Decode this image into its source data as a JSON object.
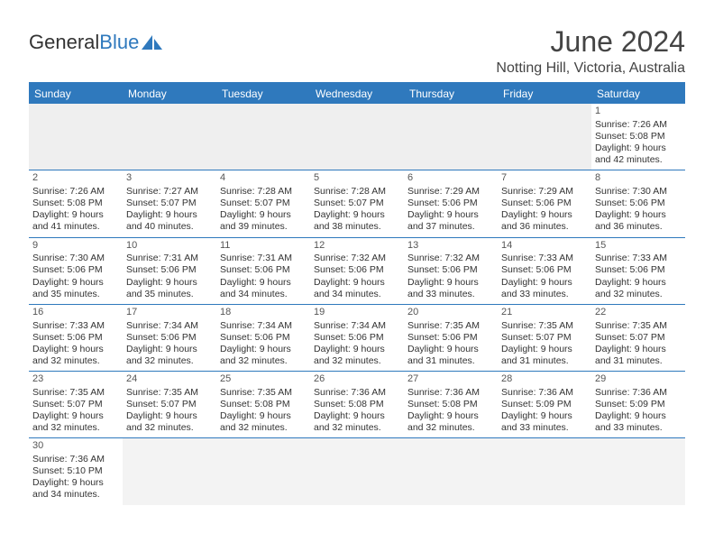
{
  "logo": {
    "text1": "General",
    "text2": "Blue"
  },
  "title": {
    "month": "June 2024",
    "location": "Notting Hill, Victoria, Australia"
  },
  "colors": {
    "brand": "#2f79bd",
    "text": "#333333",
    "bg": "#ffffff",
    "emptyCell": "#efefef"
  },
  "dayHeaders": [
    "Sunday",
    "Monday",
    "Tuesday",
    "Wednesday",
    "Thursday",
    "Friday",
    "Saturday"
  ],
  "weeks": [
    [
      {
        "empty": true
      },
      {
        "empty": true
      },
      {
        "empty": true
      },
      {
        "empty": true
      },
      {
        "empty": true
      },
      {
        "empty": true
      },
      {
        "day": "1",
        "sunrise": "Sunrise: 7:26 AM",
        "sunset": "Sunset: 5:08 PM",
        "daylight1": "Daylight: 9 hours",
        "daylight2": "and 42 minutes."
      }
    ],
    [
      {
        "day": "2",
        "sunrise": "Sunrise: 7:26 AM",
        "sunset": "Sunset: 5:08 PM",
        "daylight1": "Daylight: 9 hours",
        "daylight2": "and 41 minutes."
      },
      {
        "day": "3",
        "sunrise": "Sunrise: 7:27 AM",
        "sunset": "Sunset: 5:07 PM",
        "daylight1": "Daylight: 9 hours",
        "daylight2": "and 40 minutes."
      },
      {
        "day": "4",
        "sunrise": "Sunrise: 7:28 AM",
        "sunset": "Sunset: 5:07 PM",
        "daylight1": "Daylight: 9 hours",
        "daylight2": "and 39 minutes."
      },
      {
        "day": "5",
        "sunrise": "Sunrise: 7:28 AM",
        "sunset": "Sunset: 5:07 PM",
        "daylight1": "Daylight: 9 hours",
        "daylight2": "and 38 minutes."
      },
      {
        "day": "6",
        "sunrise": "Sunrise: 7:29 AM",
        "sunset": "Sunset: 5:06 PM",
        "daylight1": "Daylight: 9 hours",
        "daylight2": "and 37 minutes."
      },
      {
        "day": "7",
        "sunrise": "Sunrise: 7:29 AM",
        "sunset": "Sunset: 5:06 PM",
        "daylight1": "Daylight: 9 hours",
        "daylight2": "and 36 minutes."
      },
      {
        "day": "8",
        "sunrise": "Sunrise: 7:30 AM",
        "sunset": "Sunset: 5:06 PM",
        "daylight1": "Daylight: 9 hours",
        "daylight2": "and 36 minutes."
      }
    ],
    [
      {
        "day": "9",
        "sunrise": "Sunrise: 7:30 AM",
        "sunset": "Sunset: 5:06 PM",
        "daylight1": "Daylight: 9 hours",
        "daylight2": "and 35 minutes."
      },
      {
        "day": "10",
        "sunrise": "Sunrise: 7:31 AM",
        "sunset": "Sunset: 5:06 PM",
        "daylight1": "Daylight: 9 hours",
        "daylight2": "and 35 minutes."
      },
      {
        "day": "11",
        "sunrise": "Sunrise: 7:31 AM",
        "sunset": "Sunset: 5:06 PM",
        "daylight1": "Daylight: 9 hours",
        "daylight2": "and 34 minutes."
      },
      {
        "day": "12",
        "sunrise": "Sunrise: 7:32 AM",
        "sunset": "Sunset: 5:06 PM",
        "daylight1": "Daylight: 9 hours",
        "daylight2": "and 34 minutes."
      },
      {
        "day": "13",
        "sunrise": "Sunrise: 7:32 AM",
        "sunset": "Sunset: 5:06 PM",
        "daylight1": "Daylight: 9 hours",
        "daylight2": "and 33 minutes."
      },
      {
        "day": "14",
        "sunrise": "Sunrise: 7:33 AM",
        "sunset": "Sunset: 5:06 PM",
        "daylight1": "Daylight: 9 hours",
        "daylight2": "and 33 minutes."
      },
      {
        "day": "15",
        "sunrise": "Sunrise: 7:33 AM",
        "sunset": "Sunset: 5:06 PM",
        "daylight1": "Daylight: 9 hours",
        "daylight2": "and 32 minutes."
      }
    ],
    [
      {
        "day": "16",
        "sunrise": "Sunrise: 7:33 AM",
        "sunset": "Sunset: 5:06 PM",
        "daylight1": "Daylight: 9 hours",
        "daylight2": "and 32 minutes."
      },
      {
        "day": "17",
        "sunrise": "Sunrise: 7:34 AM",
        "sunset": "Sunset: 5:06 PM",
        "daylight1": "Daylight: 9 hours",
        "daylight2": "and 32 minutes."
      },
      {
        "day": "18",
        "sunrise": "Sunrise: 7:34 AM",
        "sunset": "Sunset: 5:06 PM",
        "daylight1": "Daylight: 9 hours",
        "daylight2": "and 32 minutes."
      },
      {
        "day": "19",
        "sunrise": "Sunrise: 7:34 AM",
        "sunset": "Sunset: 5:06 PM",
        "daylight1": "Daylight: 9 hours",
        "daylight2": "and 32 minutes."
      },
      {
        "day": "20",
        "sunrise": "Sunrise: 7:35 AM",
        "sunset": "Sunset: 5:06 PM",
        "daylight1": "Daylight: 9 hours",
        "daylight2": "and 31 minutes."
      },
      {
        "day": "21",
        "sunrise": "Sunrise: 7:35 AM",
        "sunset": "Sunset: 5:07 PM",
        "daylight1": "Daylight: 9 hours",
        "daylight2": "and 31 minutes."
      },
      {
        "day": "22",
        "sunrise": "Sunrise: 7:35 AM",
        "sunset": "Sunset: 5:07 PM",
        "daylight1": "Daylight: 9 hours",
        "daylight2": "and 31 minutes."
      }
    ],
    [
      {
        "day": "23",
        "sunrise": "Sunrise: 7:35 AM",
        "sunset": "Sunset: 5:07 PM",
        "daylight1": "Daylight: 9 hours",
        "daylight2": "and 32 minutes."
      },
      {
        "day": "24",
        "sunrise": "Sunrise: 7:35 AM",
        "sunset": "Sunset: 5:07 PM",
        "daylight1": "Daylight: 9 hours",
        "daylight2": "and 32 minutes."
      },
      {
        "day": "25",
        "sunrise": "Sunrise: 7:35 AM",
        "sunset": "Sunset: 5:08 PM",
        "daylight1": "Daylight: 9 hours",
        "daylight2": "and 32 minutes."
      },
      {
        "day": "26",
        "sunrise": "Sunrise: 7:36 AM",
        "sunset": "Sunset: 5:08 PM",
        "daylight1": "Daylight: 9 hours",
        "daylight2": "and 32 minutes."
      },
      {
        "day": "27",
        "sunrise": "Sunrise: 7:36 AM",
        "sunset": "Sunset: 5:08 PM",
        "daylight1": "Daylight: 9 hours",
        "daylight2": "and 32 minutes."
      },
      {
        "day": "28",
        "sunrise": "Sunrise: 7:36 AM",
        "sunset": "Sunset: 5:09 PM",
        "daylight1": "Daylight: 9 hours",
        "daylight2": "and 33 minutes."
      },
      {
        "day": "29",
        "sunrise": "Sunrise: 7:36 AM",
        "sunset": "Sunset: 5:09 PM",
        "daylight1": "Daylight: 9 hours",
        "daylight2": "and 33 minutes."
      }
    ],
    [
      {
        "day": "30",
        "sunrise": "Sunrise: 7:36 AM",
        "sunset": "Sunset: 5:10 PM",
        "daylight1": "Daylight: 9 hours",
        "daylight2": "and 34 minutes."
      },
      {
        "empty": true
      },
      {
        "empty": true
      },
      {
        "empty": true
      },
      {
        "empty": true
      },
      {
        "empty": true
      },
      {
        "empty": true
      }
    ]
  ]
}
